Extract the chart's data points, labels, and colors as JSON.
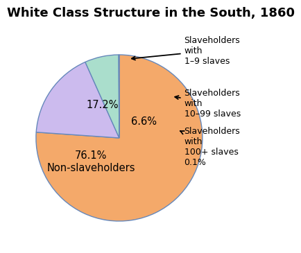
{
  "title": "White Class Structure in the South, 1860",
  "slices": [
    76.1,
    17.2,
    6.6,
    0.1
  ],
  "colors": [
    "#F4A96A",
    "#CCBBEE",
    "#AADECC",
    "#EEFF88"
  ],
  "startangle": 90,
  "edge_color": "#6688BB",
  "background_color": "#FFFFFF",
  "title_fontsize": 13,
  "label_fontsize": 10.5,
  "annot_fontsize": 9,
  "legend_labels": [
    "Slaveholders\nwith\n1–9 slaves",
    "Slaveholders\nwith\n10–99 slaves",
    "Slaveholders\nwith\n100+ slaves\n0.1%"
  ]
}
